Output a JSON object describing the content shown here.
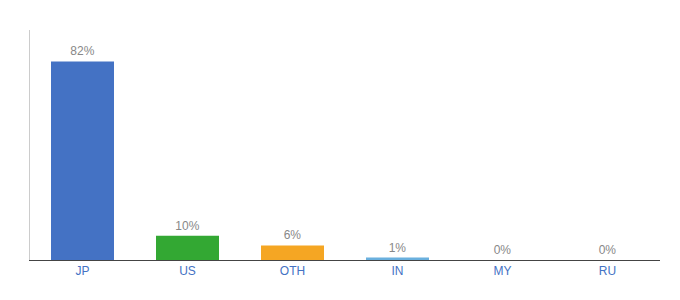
{
  "chart_data": {
    "type": "bar",
    "categories": [
      "JP",
      "US",
      "OTH",
      "IN",
      "MY",
      "RU"
    ],
    "values": [
      82,
      10,
      6,
      1,
      0,
      0
    ],
    "value_labels": [
      "82%",
      "10%",
      "6%",
      "1%",
      "0%",
      "0%"
    ],
    "colors": [
      "#4472c4",
      "#33a833",
      "#f5a623",
      "#6ab0de",
      "#a0c4e8",
      "#a0c4e8"
    ],
    "ylim": [
      0,
      95
    ],
    "tick_labels": "x",
    "data_labels": true,
    "grid": false
  }
}
